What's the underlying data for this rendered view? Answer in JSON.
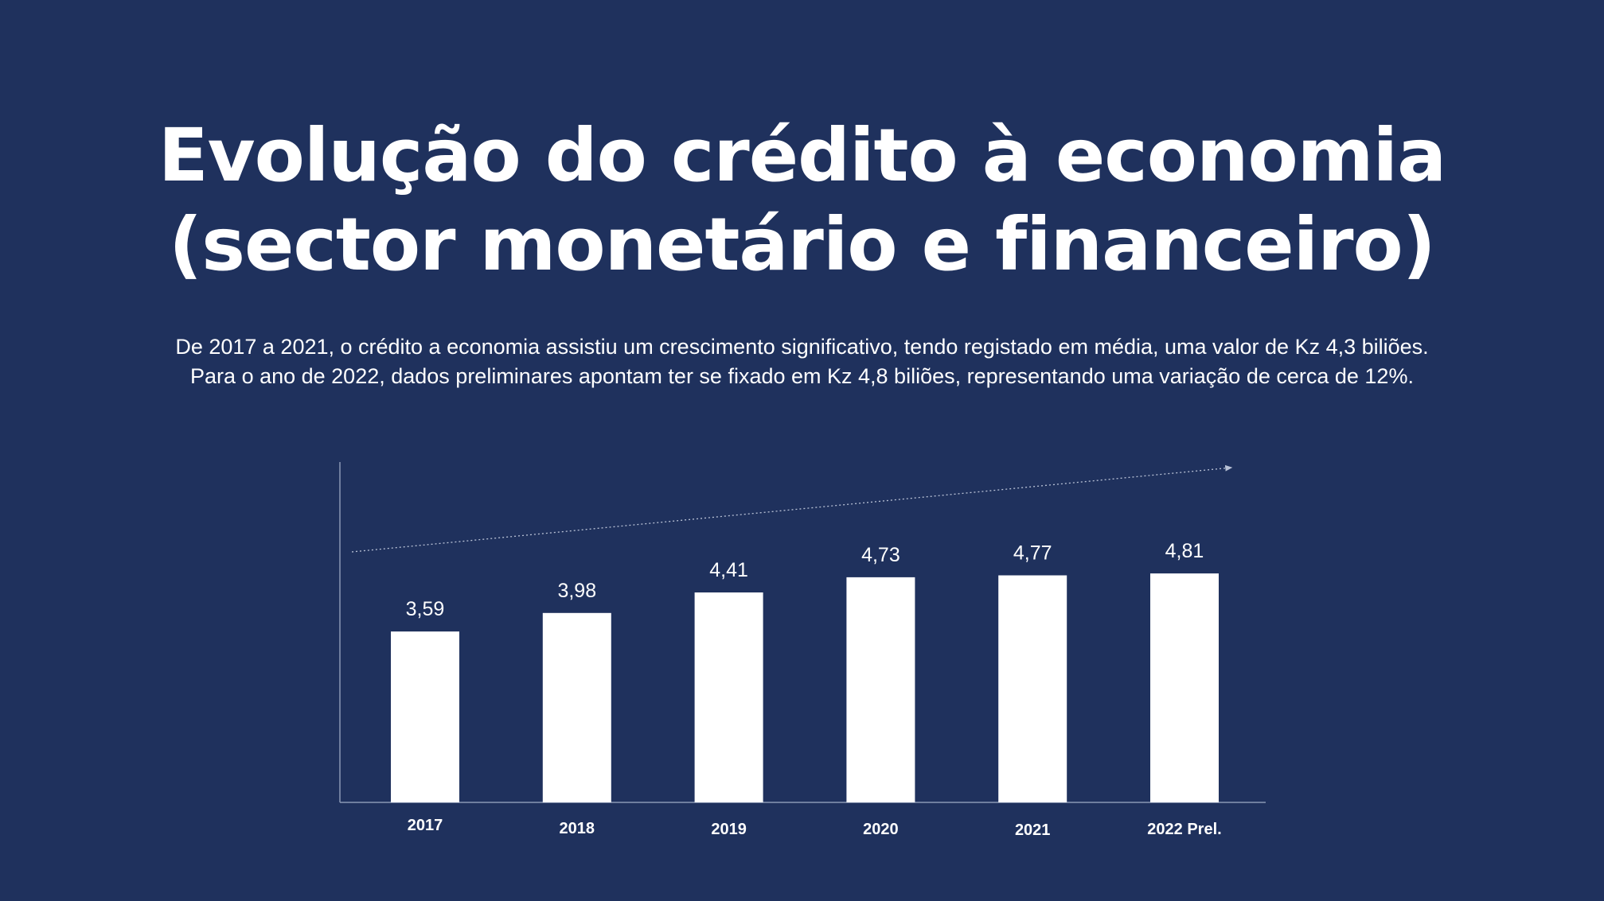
{
  "title_lines": [
    "Evolução do crédito à economia",
    "(sector monetário e financeiro)"
  ],
  "subtitle_lines": [
    "De 2017 a 2021, o crédito a economia assistiu um crescimento significativo, tendo registado em média, uma valor de Kz 4,3 biliões.",
    "Para o ano de 2022, dados preliminares apontam ter se fixado em Kz 4,8 biliões, representando uma variação de cerca de 12%."
  ],
  "colors": {
    "background": "#1f315d",
    "bars": "#ffffff",
    "text": "#ffffff",
    "axis": "#8a97b3",
    "trend": "#b9c2d6"
  },
  "chart_data": {
    "type": "bar",
    "categories": [
      "2017",
      "2018",
      "2019",
      "2020",
      "2021",
      "2022 Prel."
    ],
    "values": [
      3.59,
      3.98,
      4.41,
      4.73,
      4.77,
      4.81
    ],
    "data_labels": [
      "3,59",
      "3,98",
      "4,41",
      "4,73",
      "4,77",
      "4,81"
    ],
    "ylim": [
      0,
      7.15
    ],
    "grid": false,
    "legend": "none",
    "trend_arrow": true
  }
}
